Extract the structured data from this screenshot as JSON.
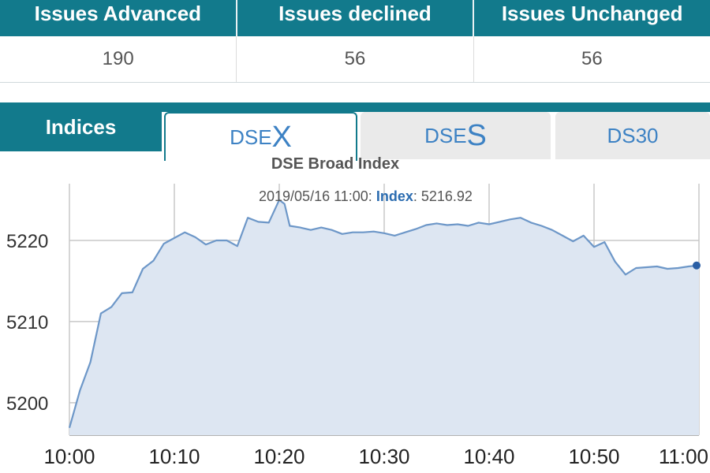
{
  "stats": {
    "headers": [
      "Issues Advanced",
      "Issues declined",
      "Issues Unchanged"
    ],
    "values": [
      "190",
      "56",
      "56"
    ]
  },
  "tabs": {
    "indices_label": "Indices",
    "tab1_prefix": "DSE",
    "tab1_suffix": "X",
    "tab2_prefix": "DSE",
    "tab2_suffix": "S",
    "tab3_label": "DS30"
  },
  "tooltip": {
    "timestamp": "2019/05/16 11:00:",
    "key": "Index",
    "value": "5216.92"
  },
  "colors": {
    "header_bg": "#127a8c",
    "line": "#6d97c8",
    "fill": "#dde6f2",
    "marker": "#2a5fa5"
  },
  "chart_data": {
    "type": "area",
    "title": "DSE Broad Index",
    "xlabel": "",
    "ylabel": "",
    "xlim": [
      0,
      60
    ],
    "ylim": [
      5196,
      5227
    ],
    "yticks": [
      5200,
      5210,
      5220
    ],
    "xticks": [
      0,
      10,
      20,
      30,
      40,
      50,
      60
    ],
    "xtick_labels": [
      "10:00",
      "10:10",
      "10:20",
      "10:30",
      "10:40",
      "10:50",
      "11:00"
    ],
    "grid": true,
    "series": [
      {
        "x": [
          0,
          1,
          2,
          3,
          4,
          5,
          6,
          7,
          8,
          9,
          10,
          11,
          12,
          13,
          14,
          15,
          16,
          17,
          18,
          19,
          20,
          20.5,
          21,
          22,
          23,
          24,
          25,
          26,
          27,
          28,
          29,
          30,
          31,
          32,
          33,
          34,
          35,
          36,
          37,
          38,
          39,
          40,
          41,
          42,
          43,
          44,
          45,
          46,
          47,
          48,
          49,
          50,
          51,
          52,
          53,
          54,
          55,
          56,
          57,
          58,
          59,
          60
        ],
        "values": [
          5196.9,
          5201.5,
          5205.0,
          5211.0,
          5211.8,
          5213.5,
          5213.6,
          5216.5,
          5217.5,
          5219.6,
          5220.3,
          5221.0,
          5220.4,
          5219.5,
          5220.0,
          5220.0,
          5219.3,
          5222.8,
          5222.3,
          5222.2,
          5225.0,
          5224.5,
          5221.8,
          5221.6,
          5221.3,
          5221.6,
          5221.3,
          5220.8,
          5221.0,
          5221.0,
          5221.1,
          5220.9,
          5220.6,
          5221.0,
          5221.4,
          5221.9,
          5222.1,
          5221.9,
          5222.0,
          5221.8,
          5222.2,
          5222.0,
          5222.3,
          5222.6,
          5222.8,
          5222.2,
          5221.8,
          5221.3,
          5220.6,
          5219.9,
          5220.6,
          5219.2,
          5219.8,
          5217.4,
          5215.8,
          5216.6,
          5216.7,
          5216.8,
          5216.5,
          5216.6,
          5216.8,
          5216.92
        ]
      }
    ]
  }
}
